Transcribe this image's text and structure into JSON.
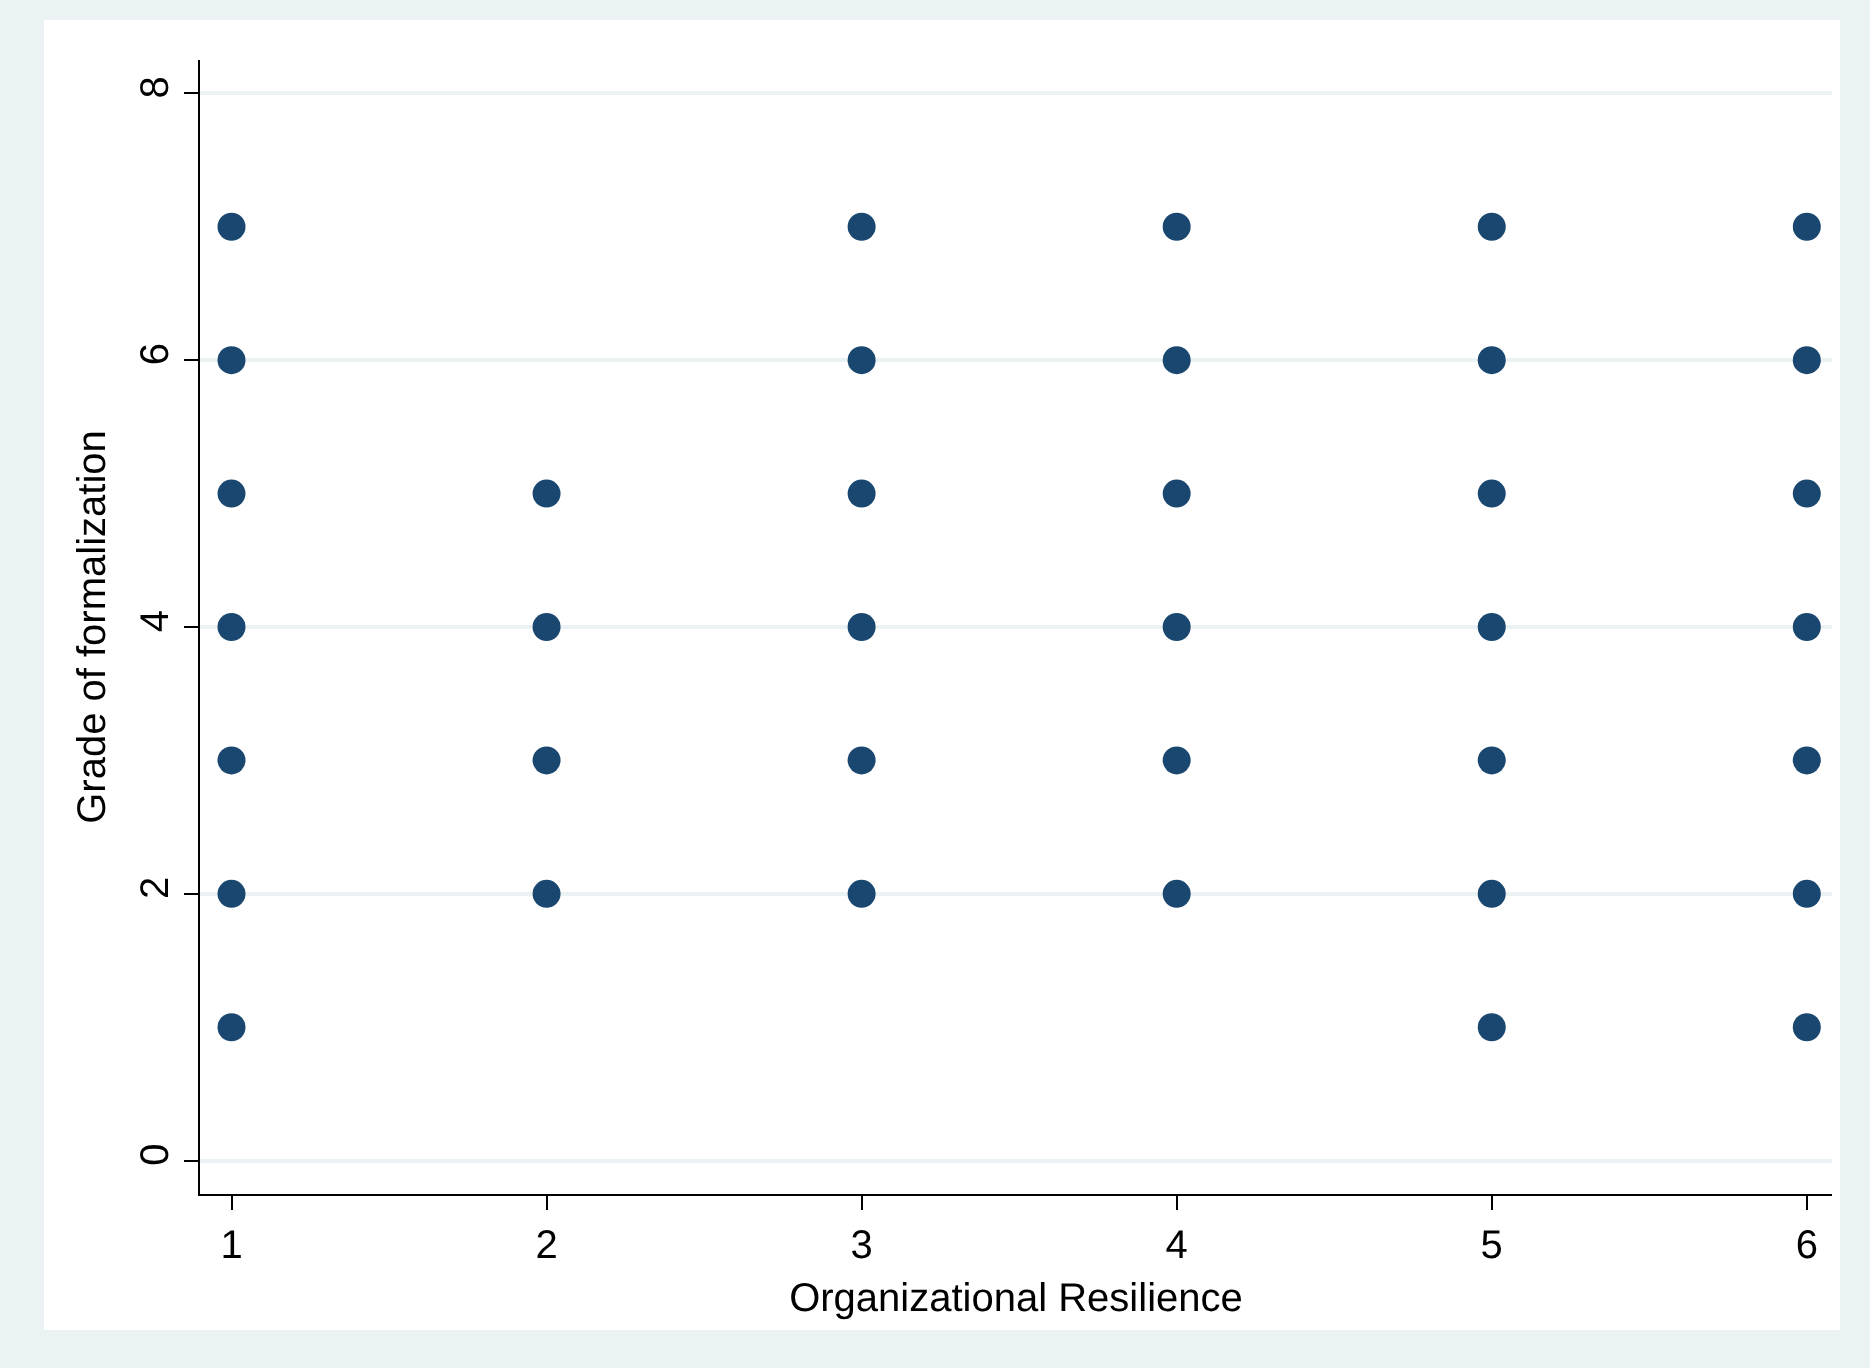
{
  "chart_data": {
    "type": "scatter",
    "xlabel": "Organizational Resilience",
    "ylabel": "Grade of formalization",
    "x": [
      1,
      1,
      1,
      1,
      1,
      1,
      1,
      2,
      2,
      2,
      2,
      3,
      3,
      3,
      3,
      3,
      3,
      4,
      4,
      4,
      4,
      4,
      4,
      5,
      5,
      5,
      5,
      5,
      5,
      5,
      6,
      6,
      6,
      6,
      6,
      6,
      6
    ],
    "values": [
      7,
      6,
      5,
      4,
      3,
      2,
      1,
      5,
      4,
      3,
      2,
      7,
      6,
      5,
      4,
      3,
      2,
      7,
      6,
      5,
      4,
      3,
      2,
      7,
      6,
      5,
      4,
      3,
      2,
      1,
      7,
      6,
      5,
      4,
      3,
      2,
      1
    ],
    "color": "#1a476f",
    "marker": "circle",
    "xlim": [
      0.9,
      6.08
    ],
    "xticks": [
      1,
      2,
      3,
      4,
      5,
      6
    ],
    "ylim": [
      -0.25,
      8.25
    ],
    "yticks": [
      0,
      2,
      4,
      6,
      8
    ],
    "grid": "y"
  }
}
